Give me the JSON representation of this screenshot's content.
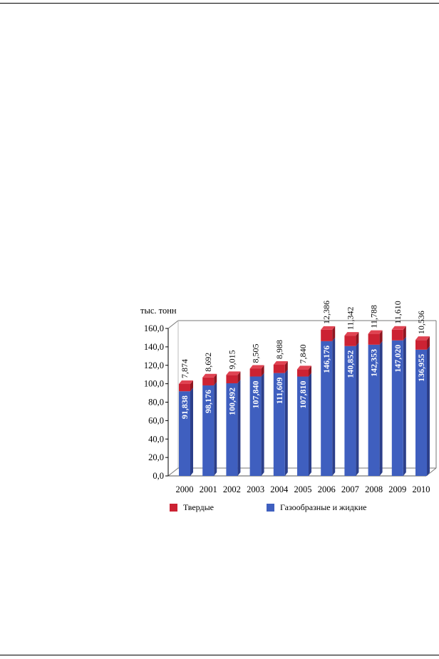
{
  "chart_data": {
    "type": "bar",
    "stacked": true,
    "unit_label": "тыс. тонн",
    "categories": [
      "2000",
      "2001",
      "2002",
      "2003",
      "2004",
      "2005",
      "2006",
      "2007",
      "2008",
      "2009",
      "2010"
    ],
    "series": [
      {
        "name": "Газообразные и жидкие",
        "color": "#3f5fbf",
        "values": [
          91.838,
          98.176,
          100.492,
          107.84,
          111.609,
          107.81,
          146.176,
          140.852,
          142.353,
          147.02,
          136.955
        ],
        "labels": [
          "91,838",
          "98,176",
          "100,492",
          "107,840",
          "111,609",
          "107,810",
          "146,176",
          "140,852",
          "142,353",
          "147,020",
          "136,955"
        ]
      },
      {
        "name": "Твердые",
        "color": "#cc2233",
        "values": [
          7.874,
          8.692,
          9.015,
          8.505,
          8.988,
          7.84,
          12.386,
          11.342,
          11.788,
          11.61,
          10.536
        ],
        "labels": [
          "7,874",
          "8,692",
          "9,015",
          "8,505",
          "8,988",
          "7,840",
          "12,386",
          "11,342",
          "11,788",
          "11,610",
          "10,536"
        ]
      }
    ],
    "ylim": [
      0,
      160
    ],
    "yticks": [
      "0,0",
      "20,0",
      "40,0",
      "60,0",
      "80,0",
      "100,0",
      "120,0",
      "140,0",
      "160,0"
    ],
    "legend_position": "bottom",
    "grid": false
  }
}
